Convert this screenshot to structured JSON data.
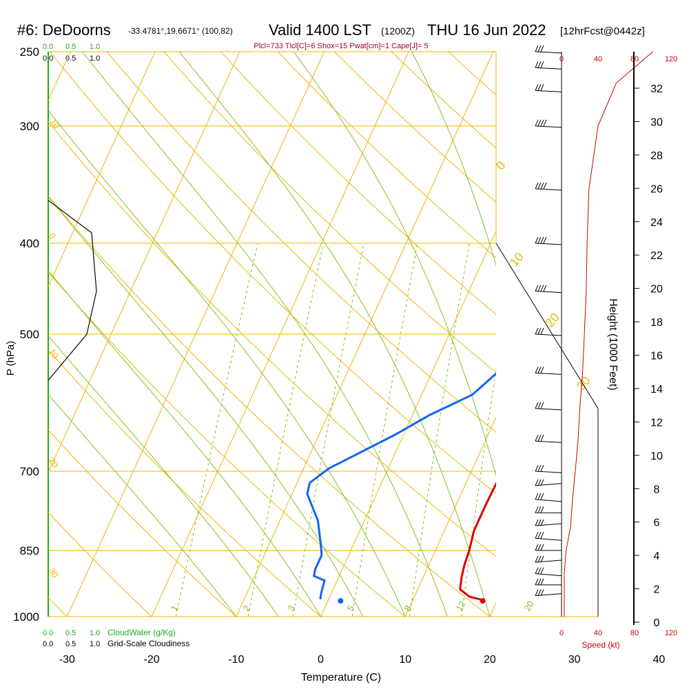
{
  "header": {
    "site": "#6: DeDoorns",
    "coords": "-33.4781°,19.6671° (100,82)",
    "valid": "Valid 1400 LST",
    "utc": "(1200Z)",
    "date": "THU 16 Jun 2022",
    "fcst": "[12hrFcst@0442z]",
    "params": "Plcl=733 Tlcl[C]=6 Shox=15 Pwat[cm]=1 Cape[J]= 5"
  },
  "legend": {
    "cloudwater_label": "CloudWater (g/Kg)",
    "cloudiness_label": "Grid-Scale Cloudiness",
    "scale_green": [
      "0.0",
      "0.5",
      "1.0"
    ],
    "scale_black": [
      "0.0",
      "0.5",
      "1.0"
    ]
  },
  "colors": {
    "temperature": "#dd0000",
    "dewpoint": "#1166ee",
    "isobar_isotherm": "#f0b400",
    "dry_adiabat": "#f0b400",
    "moist_adiabat": "#88c020",
    "mixing_ratio": "#88c020",
    "cloudwater": "#22aa22",
    "speed": "#cc0000",
    "title_param": "#990033"
  },
  "chart_data": {
    "type": "line",
    "title": "Valid 1400 LST (1200Z) THU 16 Jun 2022",
    "xlabel": "Temperature (C)",
    "ylabel": "P (hPa)",
    "y2label": "Height (1000 Feet)",
    "xlim": [
      -35,
      36
    ],
    "ylim": [
      1000,
      250
    ],
    "pressure_ticks": [
      250,
      300,
      400,
      500,
      700,
      850,
      1000
    ],
    "temp_ticks": [
      -30,
      -20,
      -10,
      0,
      10,
      20,
      30,
      40
    ],
    "height_ticks": [
      0,
      2,
      4,
      6,
      8,
      10,
      12,
      14,
      16,
      18,
      20,
      22,
      24,
      26,
      28,
      30,
      32
    ],
    "speed_ticks": [
      0,
      40,
      80,
      120
    ],
    "speed_label": "Speed (kt)",
    "mixing_ratio_labels": [
      "1",
      "2",
      "3",
      "5",
      "8",
      "12",
      "20"
    ],
    "adiabat_labels": [
      "30",
      "20",
      "10",
      "0",
      "-10",
      "-20",
      "-30"
    ],
    "series": [
      {
        "name": "Temperature",
        "points": [
          [
            18.3,
            960
          ],
          [
            16.5,
            952
          ],
          [
            15.0,
            935
          ],
          [
            14.5,
            905
          ],
          [
            14.2,
            880
          ],
          [
            14.0,
            850
          ],
          [
            13.5,
            810
          ],
          [
            13.5,
            760
          ],
          [
            13.6,
            720
          ],
          [
            14.2,
            700
          ],
          [
            12.0,
            650
          ],
          [
            10.5,
            600
          ],
          [
            10.2,
            560
          ],
          [
            10.5,
            530
          ],
          [
            10.5,
            500
          ],
          [
            9.3,
            450
          ],
          [
            8.0,
            400
          ],
          [
            6.0,
            350
          ],
          [
            3.5,
            300
          ],
          [
            1.0,
            265
          ],
          [
            -0.5,
            250
          ]
        ]
      },
      {
        "name": "Dewpoint",
        "points": [
          [
            -1.0,
            958
          ],
          [
            -1.2,
            945
          ],
          [
            -1.5,
            915
          ],
          [
            -3.0,
            905
          ],
          [
            -3.2,
            890
          ],
          [
            -3.2,
            860
          ],
          [
            -3.8,
            840
          ],
          [
            -5.5,
            790
          ],
          [
            -8.2,
            740
          ],
          [
            -8.5,
            720
          ],
          [
            -7.0,
            695
          ],
          [
            -1.0,
            640
          ],
          [
            2.0,
            610
          ],
          [
            6.0,
            580
          ],
          [
            8.0,
            545
          ],
          [
            8.5,
            510
          ],
          [
            8.0,
            490
          ],
          [
            6.5,
            440
          ],
          [
            4.0,
            400
          ],
          [
            1.5,
            360
          ],
          [
            -2.5,
            320
          ],
          [
            -4.5,
            300
          ],
          [
            -6.0,
            275
          ],
          [
            -7.0,
            255
          ]
        ]
      }
    ],
    "surface_dewpoint_marker": [
      1.5,
      962
    ],
    "surface_temperature_marker": [
      18.3,
      962
    ],
    "cloudiness_profile": [
      [
        0.0,
        360
      ],
      [
        0.9,
        390
      ],
      [
        1.0,
        450
      ],
      [
        0.8,
        500
      ],
      [
        0.0,
        560
      ]
    ],
    "wind_speed_kt": [
      [
        3,
        1000
      ],
      [
        3,
        900
      ],
      [
        5,
        850
      ],
      [
        10,
        800
      ],
      [
        12,
        750
      ],
      [
        15,
        700
      ],
      [
        18,
        650
      ],
      [
        20,
        600
      ],
      [
        23,
        550
      ],
      [
        25,
        500
      ],
      [
        27,
        450
      ],
      [
        28,
        400
      ],
      [
        30,
        350
      ],
      [
        40,
        300
      ],
      [
        60,
        270
      ],
      [
        100,
        250
      ]
    ],
    "wind_barbs_pressure": [
      950,
      925,
      900,
      875,
      850,
      825,
      800,
      775,
      750,
      725,
      700,
      650,
      600,
      550,
      500,
      450,
      400,
      350,
      300,
      275,
      260,
      250
    ]
  }
}
